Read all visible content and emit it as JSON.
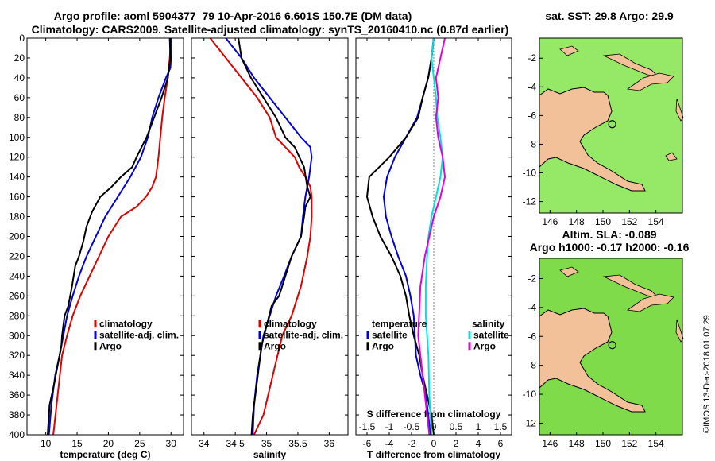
{
  "title_line1": "Argo profile: aoml 5904377_79 10-Apr-2016 6.601S 150.7E (DM data)",
  "title_line2": "Climatology: CARS2009. Satellite-adjusted climatology: synTS_20160410.nc (0.87d earlier)",
  "stamp": "©IMOS 13-Dec-2018 01:07:29",
  "colors": {
    "climatology": "#e00000",
    "satellite": "#0000e0",
    "argo": "#000000",
    "satellite_s": "#00e0e0",
    "argo_s": "#e000e0",
    "land": "#f2c099"
  },
  "chart_data": [
    {
      "type": "line",
      "xlabel": "temperature (deg C)",
      "ylabel": "",
      "xlim": [
        7,
        32
      ],
      "ylim": [
        400,
        0
      ],
      "xticks": [
        10,
        15,
        20,
        25,
        30
      ],
      "yticks": [
        0,
        20,
        40,
        60,
        80,
        100,
        120,
        140,
        160,
        180,
        200,
        220,
        240,
        260,
        280,
        300,
        320,
        340,
        360,
        380,
        400
      ],
      "legend": [
        "climatology",
        "satellite-adj. clim.",
        "Argo"
      ],
      "series": [
        {
          "name": "climatology",
          "color": "climatology",
          "x": [
            30,
            29.8,
            29.5,
            29,
            28.6,
            28.3,
            28,
            27.6,
            27,
            26,
            24.5,
            22,
            20,
            18.5,
            17,
            15.5,
            14.3,
            13.4,
            12.6,
            11.9,
            11.2
          ],
          "y": [
            0,
            20,
            40,
            60,
            80,
            100,
            120,
            140,
            150,
            160,
            170,
            180,
            200,
            220,
            240,
            260,
            280,
            300,
            320,
            360,
            400
          ]
        },
        {
          "name": "satellite-adj. clim.",
          "color": "satellite",
          "x": [
            30,
            30,
            29.9,
            29.2,
            28,
            27,
            26.3,
            25.2,
            23.5,
            21.5,
            19.5,
            18,
            16.5,
            15.3,
            14.3,
            13.4,
            12.8,
            12.2,
            11.5,
            10.9,
            10.5
          ],
          "y": [
            0,
            20,
            30,
            40,
            60,
            80,
            100,
            120,
            140,
            160,
            180,
            200,
            220,
            240,
            260,
            280,
            300,
            320,
            340,
            370,
            400
          ]
        },
        {
          "name": "Argo",
          "color": "argo",
          "x": [
            29.8,
            29.9,
            29.7,
            29.5,
            28.5,
            27.3,
            26.1,
            25.3,
            24.5,
            23.8,
            22,
            20.5,
            18.7,
            17.4,
            16.5,
            16,
            15.3,
            14.7,
            14.2,
            13.6,
            13,
            12.8,
            12.6,
            12.5,
            12.2,
            11.9,
            11.6,
            11.3,
            10.6,
            10.5,
            10.3
          ],
          "y": [
            0,
            20,
            30,
            40,
            60,
            80,
            100,
            110,
            120,
            130,
            140,
            150,
            160,
            175,
            190,
            205,
            220,
            230,
            250,
            270,
            280,
            290,
            300,
            310,
            320,
            330,
            340,
            350,
            370,
            380,
            400
          ]
        }
      ]
    },
    {
      "type": "line",
      "xlabel": "salinity",
      "ylabel": "",
      "xlim": [
        33.8,
        36.3
      ],
      "ylim": [
        400,
        0
      ],
      "xticks": [
        34,
        34.5,
        35,
        35.5,
        36
      ],
      "yticks": [],
      "legend": [
        "climatology",
        "satellite-adj. clim.",
        "Argo"
      ],
      "series": [
        {
          "name": "climatology",
          "color": "climatology",
          "x": [
            34.1,
            34.35,
            34.6,
            34.85,
            35.05,
            35.15,
            35.3,
            35.45,
            35.52,
            35.62,
            35.7,
            35.72,
            35.72,
            35.7,
            35.65,
            35.55,
            35.4,
            35.25,
            35.1,
            34.95,
            34.8
          ],
          "y": [
            0,
            20,
            40,
            60,
            80,
            100,
            110,
            120,
            130,
            140,
            150,
            160,
            180,
            200,
            220,
            250,
            280,
            300,
            340,
            380,
            400
          ]
        },
        {
          "name": "satellite-adj. clim.",
          "color": "satellite",
          "x": [
            34.35,
            34.6,
            34.8,
            35.05,
            35.3,
            35.55,
            35.7,
            35.72,
            35.68,
            35.62,
            35.58,
            35.55,
            35.4,
            35.28,
            35.15,
            35.05,
            34.95,
            34.9,
            34.85,
            34.8,
            34.78
          ],
          "y": [
            0,
            20,
            40,
            60,
            80,
            100,
            110,
            120,
            140,
            160,
            180,
            200,
            220,
            240,
            260,
            280,
            300,
            320,
            340,
            370,
            400
          ]
        },
        {
          "name": "Argo",
          "color": "argo",
          "x": [
            34.55,
            34.6,
            34.75,
            34.95,
            35.15,
            35.3,
            35.45,
            35.6,
            35.65,
            35.7,
            35.62,
            35.6,
            35.55,
            35.4,
            35.3,
            35.2,
            35.08,
            35,
            34.92,
            34.88,
            34.82,
            34.78,
            34.76
          ],
          "y": [
            0,
            20,
            40,
            60,
            80,
            100,
            110,
            130,
            150,
            160,
            170,
            180,
            200,
            220,
            240,
            260,
            270,
            290,
            310,
            330,
            360,
            380,
            400
          ]
        }
      ]
    },
    {
      "type": "line",
      "xlabel": "T difference from climatology",
      "top_xlabel": "S difference from climatology",
      "ylabel": "",
      "xlim": [
        -7,
        7
      ],
      "ylim": [
        400,
        0
      ],
      "xticks": [
        -6,
        -4,
        -2,
        0,
        2,
        4,
        6
      ],
      "top_xticks": [
        -1.5,
        -1,
        -0.5,
        0,
        0.5,
        1,
        1.5
      ],
      "top_xlim": [
        -1.75,
        1.75
      ],
      "yticks": [],
      "legend": [
        "temperature",
        "satellite",
        "Argo",
        "salinity",
        "satellite",
        "Argo"
      ],
      "series": [
        {
          "name": "T satellite",
          "color": "satellite",
          "x": [
            0,
            -0.2,
            -0.5,
            -1,
            -1.5,
            -2.5,
            -3.5,
            -4.2,
            -4.5,
            -4.3,
            -3.8,
            -3.2,
            -2.5,
            -2.1,
            -1.8,
            -1.7,
            -1.6,
            -1.2,
            -0.7,
            -0.3
          ],
          "y": [
            0,
            20,
            40,
            60,
            80,
            100,
            120,
            140,
            160,
            180,
            200,
            220,
            240,
            260,
            280,
            300,
            320,
            340,
            360,
            400
          ]
        },
        {
          "name": "T Argo",
          "color": "argo",
          "x": [
            0,
            -0.2,
            -0.5,
            -1,
            -1.4,
            -2.5,
            -4,
            -5.8,
            -6,
            -5.5,
            -4.8,
            -3.8,
            -3,
            -2.5,
            -2.2,
            -1.8,
            -1.3,
            -1,
            -0.6,
            -0.2,
            0
          ],
          "y": [
            0,
            20,
            40,
            60,
            80,
            100,
            120,
            140,
            160,
            180,
            200,
            220,
            240,
            260,
            280,
            300,
            320,
            340,
            360,
            380,
            400
          ]
        },
        {
          "name": "S satellite",
          "color": "satellite_s",
          "x": [
            0,
            -0.05,
            0,
            0.05,
            0.08,
            0.15,
            0.2,
            0.15,
            0.05,
            -0.05,
            -0.12,
            -0.15,
            -0.18,
            -0.18,
            -0.15,
            -0.12,
            -0.1,
            -0.05
          ],
          "y": [
            0,
            20,
            40,
            60,
            80,
            100,
            120,
            140,
            160,
            180,
            200,
            220,
            250,
            280,
            300,
            320,
            360,
            400
          ]
        },
        {
          "name": "S Argo",
          "color": "argo_s",
          "x": [
            0.25,
            0.15,
            0.05,
            0.1,
            0.05,
            0.1,
            0.2,
            0.25,
            0.15,
            0,
            -0.1,
            -0.2,
            -0.3,
            -0.32,
            -0.35,
            -0.3,
            -0.25,
            -0.2,
            -0.15,
            -0.1
          ],
          "y": [
            0,
            20,
            40,
            60,
            80,
            100,
            120,
            140,
            160,
            180,
            200,
            220,
            250,
            270,
            300,
            320,
            340,
            360,
            380,
            400
          ]
        }
      ]
    }
  ],
  "maps": [
    {
      "title": "sat. SST: 29.8 Argo: 29.9",
      "xticks": [
        146,
        148,
        150,
        152,
        154
      ],
      "yticks": [
        -2,
        -4,
        -6,
        -8,
        -10,
        -12
      ],
      "xlim": [
        145.2,
        156
      ],
      "ylim": [
        -12.8,
        -0.6
      ],
      "argo_lon": 150.7,
      "argo_lat": -6.601
    },
    {
      "title1": "Altim. SLA: -0.089",
      "title2": "Argo h1000: -0.17 h2000: -0.16",
      "xticks": [
        146,
        148,
        150,
        152,
        154
      ],
      "yticks": [
        -2,
        -4,
        -6,
        -8,
        -10,
        -12
      ],
      "xlim": [
        145.2,
        156
      ],
      "ylim": [
        -12.8,
        -0.6
      ],
      "argo_lon": 150.7,
      "argo_lat": -6.601
    }
  ]
}
